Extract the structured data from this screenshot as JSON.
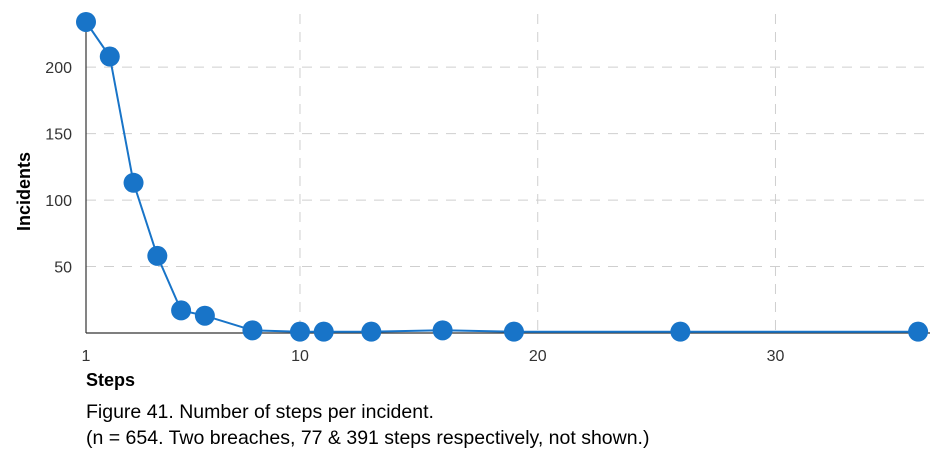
{
  "chart_data": {
    "type": "line",
    "xlabel": "Steps",
    "ylabel": "Incidents",
    "xlim": [
      1,
      36.5
    ],
    "ylim": [
      0,
      240
    ],
    "x_ticks": [
      1,
      10,
      20,
      30
    ],
    "y_ticks": [
      50,
      100,
      150,
      200
    ],
    "grid": true,
    "series": [
      {
        "x": [
          1,
          2,
          3,
          4,
          5,
          6,
          8,
          10,
          11,
          13,
          16,
          19,
          26,
          36
        ],
        "y": [
          234,
          208,
          113,
          58,
          17,
          13,
          2,
          1,
          1,
          1,
          2,
          1,
          1,
          1
        ]
      }
    ],
    "color": "#1874c8"
  },
  "caption": {
    "line1": "Figure 41. Number of steps per incident.",
    "line2": "(n = 654.  Two breaches, 77 & 391 steps respectively, not shown.)"
  }
}
